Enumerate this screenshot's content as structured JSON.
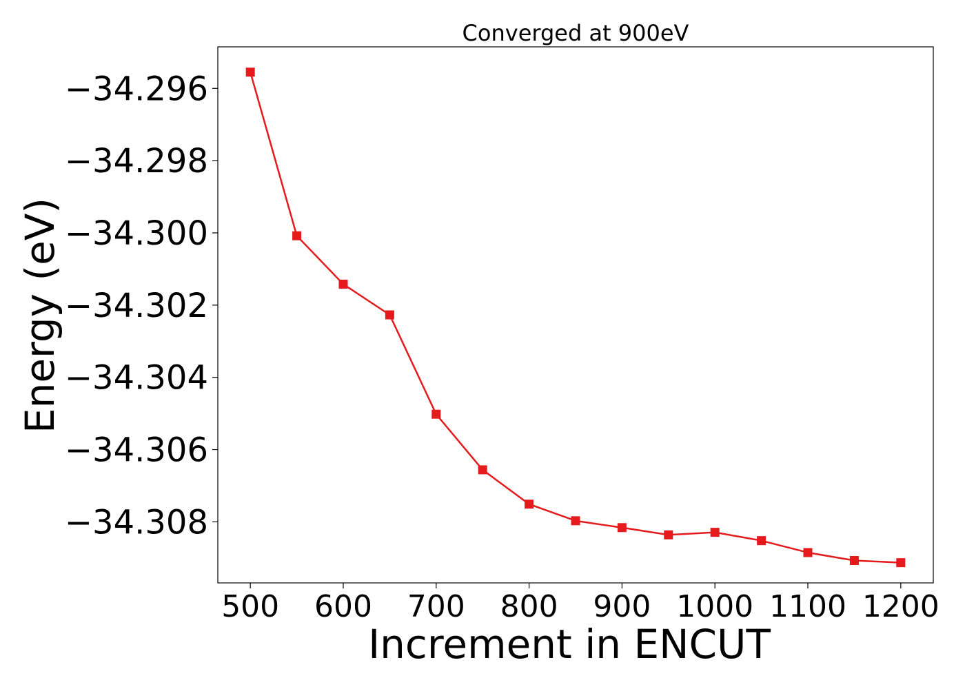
{
  "chart_data": {
    "type": "line",
    "title": "Converged at 900eV",
    "xlabel": "Increment in ENCUT",
    "ylabel": "Energy (eV)",
    "x": [
      500,
      550,
      600,
      650,
      700,
      750,
      800,
      850,
      900,
      950,
      1000,
      1050,
      1100,
      1150,
      1200
    ],
    "series": [
      {
        "values": [
          -34.29555,
          -34.30008,
          -34.30142,
          -34.30227,
          -34.30502,
          -34.30656,
          -34.30751,
          -34.30797,
          -34.30816,
          -34.30836,
          -34.30829,
          -34.30852,
          -34.30885,
          -34.30907,
          -34.30913
        ],
        "color": "#e41a1c",
        "marker": "square"
      }
    ],
    "xticks": [
      500,
      600,
      700,
      800,
      900,
      1000,
      1100,
      1200
    ],
    "xtick_labels": [
      "500",
      "600",
      "700",
      "800",
      "900",
      "1000",
      "1100",
      "1200"
    ],
    "yticks": [
      -34.296,
      -34.298,
      -34.3,
      -34.302,
      -34.304,
      -34.306,
      -34.308
    ],
    "ytick_labels": [
      "−34.296",
      "−34.298",
      "−34.300",
      "−34.302",
      "−34.304",
      "−34.306",
      "−34.308"
    ],
    "xlim": [
      465,
      1235
    ],
    "ylim": [
      -34.30969,
      -34.29485
    ],
    "grid": false,
    "legend": "none"
  }
}
